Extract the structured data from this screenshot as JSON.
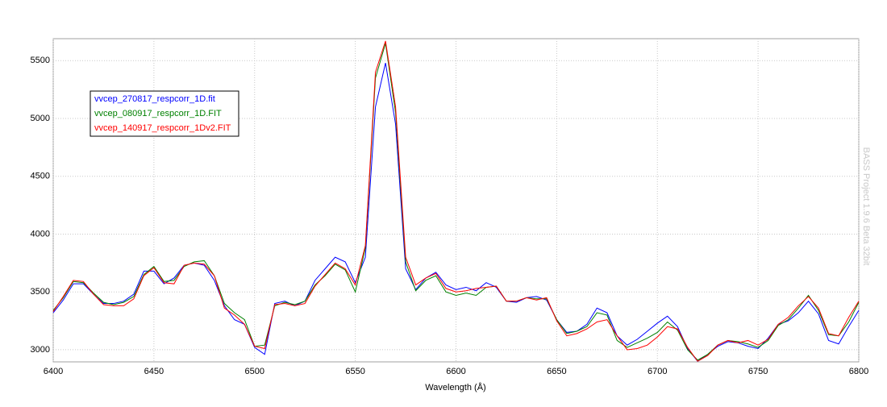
{
  "chart_data": {
    "type": "line",
    "xlabel": "Wavelength (Å)",
    "watermark": "BASS Project 1.9.6 Beta 32bit",
    "x": [
      6400,
      6405,
      6410,
      6415,
      6420,
      6425,
      6430,
      6435,
      6440,
      6445,
      6450,
      6455,
      6460,
      6465,
      6470,
      6475,
      6480,
      6485,
      6490,
      6495,
      6500,
      6505,
      6510,
      6515,
      6520,
      6525,
      6530,
      6535,
      6540,
      6545,
      6550,
      6555,
      6560,
      6565,
      6570,
      6575,
      6580,
      6585,
      6590,
      6595,
      6600,
      6605,
      6610,
      6615,
      6620,
      6625,
      6630,
      6635,
      6640,
      6645,
      6650,
      6655,
      6660,
      6665,
      6670,
      6675,
      6680,
      6685,
      6690,
      6695,
      6700,
      6705,
      6710,
      6715,
      6720,
      6725,
      6730,
      6735,
      6740,
      6745,
      6750,
      6755,
      6760,
      6765,
      6770,
      6775,
      6780,
      6785,
      6790,
      6795,
      6800
    ],
    "series": [
      {
        "name": "vvcep_270817_respcorr_1D.fit",
        "color": "#0000ff",
        "values": [
          3320,
          3430,
          3570,
          3570,
          3480,
          3400,
          3400,
          3420,
          3480,
          3680,
          3680,
          3570,
          3620,
          3730,
          3750,
          3730,
          3600,
          3380,
          3260,
          3220,
          3020,
          2960,
          3400,
          3420,
          3380,
          3420,
          3600,
          3700,
          3800,
          3760,
          3580,
          3800,
          5100,
          5480,
          4950,
          3700,
          3520,
          3620,
          3670,
          3560,
          3520,
          3540,
          3510,
          3580,
          3540,
          3420,
          3410,
          3450,
          3460,
          3430,
          3260,
          3150,
          3160,
          3220,
          3360,
          3320,
          3120,
          3040,
          3090,
          3160,
          3230,
          3290,
          3200,
          3010,
          2900,
          2960,
          3030,
          3070,
          3060,
          3030,
          3010,
          3100,
          3220,
          3250,
          3320,
          3420,
          3310,
          3080,
          3050,
          3200,
          3340
        ]
      },
      {
        "name": "vvcep_080917_respcorr_1D.FIT",
        "color": "#008000",
        "values": [
          3340,
          3450,
          3590,
          3580,
          3490,
          3410,
          3390,
          3410,
          3460,
          3650,
          3720,
          3590,
          3600,
          3720,
          3760,
          3770,
          3640,
          3400,
          3320,
          3260,
          3030,
          3040,
          3380,
          3410,
          3390,
          3420,
          3560,
          3640,
          3740,
          3690,
          3500,
          3880,
          5350,
          5650,
          5050,
          3760,
          3510,
          3600,
          3640,
          3500,
          3470,
          3490,
          3470,
          3540,
          3550,
          3420,
          3420,
          3450,
          3440,
          3440,
          3260,
          3140,
          3160,
          3200,
          3320,
          3300,
          3080,
          3020,
          3060,
          3100,
          3150,
          3240,
          3170,
          3000,
          2910,
          2960,
          3040,
          3080,
          3070,
          3050,
          3020,
          3080,
          3210,
          3260,
          3360,
          3470,
          3340,
          3130,
          3120,
          3240,
          3410
        ]
      },
      {
        "name": "vvcep_140917_respcorr_1Dv2.FIT",
        "color": "#ff0000",
        "values": [
          3330,
          3460,
          3600,
          3590,
          3480,
          3390,
          3380,
          3380,
          3440,
          3640,
          3710,
          3580,
          3570,
          3730,
          3750,
          3740,
          3640,
          3360,
          3300,
          3220,
          3030,
          3010,
          3390,
          3400,
          3380,
          3400,
          3550,
          3650,
          3750,
          3700,
          3560,
          3900,
          5400,
          5670,
          5100,
          3800,
          3560,
          3620,
          3660,
          3530,
          3500,
          3510,
          3530,
          3540,
          3550,
          3420,
          3420,
          3450,
          3430,
          3450,
          3250,
          3120,
          3140,
          3180,
          3240,
          3260,
          3120,
          3000,
          3010,
          3040,
          3110,
          3200,
          3180,
          3020,
          2900,
          2950,
          3040,
          3080,
          3060,
          3080,
          3040,
          3090,
          3220,
          3280,
          3380,
          3460,
          3360,
          3140,
          3120,
          3280,
          3420
        ]
      }
    ],
    "xlim": [
      6400,
      6800
    ],
    "xticks": [
      6400,
      6450,
      6500,
      6550,
      6600,
      6650,
      6700,
      6750,
      6800
    ],
    "ylim": [
      2895,
      5690
    ],
    "yticks": [
      3000,
      3500,
      4000,
      4500,
      5000,
      5500
    ],
    "grid": true,
    "legend": "upper left"
  }
}
